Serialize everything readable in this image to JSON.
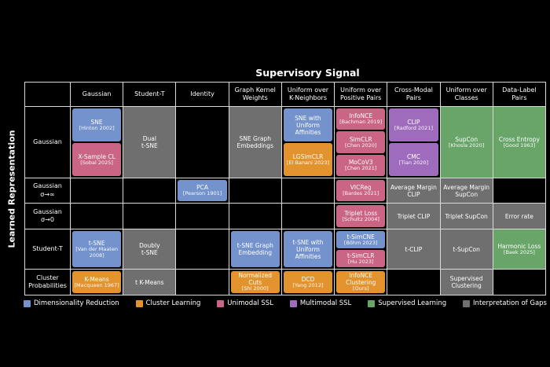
{
  "title": "Supervisory Signal",
  "y_axis_label": "Learned Representation",
  "colors": {
    "blue": "#7493cd",
    "orange": "#e2932e",
    "pink": "#cb6586",
    "purple": "#9f6cbd",
    "green": "#69a569",
    "gray": "#6f6f6f"
  },
  "columns": [
    "Gaussian",
    "Student-T",
    "Identity",
    "Graph Kernel\nWeights",
    "Uniform over\nK-Neighbors",
    "Uniform over\nPositive Pairs",
    "Cross-Modal\nPairs",
    "Uniform over\nClasses",
    "Data-Label\nPairs"
  ],
  "rows": [
    {
      "label": "Gaussian",
      "cells": [
        {
          "items": [
            {
              "name": "SNE",
              "cite": "[Hinton 2002]",
              "color": "blue"
            },
            {
              "name": "X-Sample CL",
              "cite": "[Sobal 2025]",
              "color": "pink"
            }
          ]
        },
        {
          "fill": true,
          "items": [
            {
              "name": "Dual\nt-SNE",
              "cite": "",
              "color": "gray"
            }
          ]
        },
        {
          "items": []
        },
        {
          "fill": true,
          "items": [
            {
              "name": "SNE Graph Embeddings",
              "cite": "",
              "color": "gray"
            }
          ]
        },
        {
          "items": [
            {
              "name": "SNE with Uniform Affinities",
              "cite": "",
              "color": "blue"
            },
            {
              "name": "LGSimCLR",
              "cite": "[El Banani 2023]",
              "color": "orange"
            }
          ]
        },
        {
          "items": [
            {
              "name": "InfoNCE",
              "cite": "[Bachman 2019]",
              "color": "pink"
            },
            {
              "name": "SimCLR",
              "cite": "[Chen 2020]",
              "color": "pink"
            },
            {
              "name": "MoCoV3",
              "cite": "[Chen 2021]",
              "color": "pink"
            }
          ]
        },
        {
          "items": [
            {
              "name": "CLIP",
              "cite": "[Radford 2021]",
              "color": "purple"
            },
            {
              "name": "CMC",
              "cite": "[Tian 2020]",
              "color": "purple"
            }
          ]
        },
        {
          "fill": true,
          "items": [
            {
              "name": "SupCon",
              "cite": "[Khosla 2020]",
              "color": "green"
            }
          ]
        },
        {
          "fill": true,
          "items": [
            {
              "name": "Cross Entropy",
              "cite": "[Good 1963]",
              "color": "green"
            }
          ]
        }
      ]
    },
    {
      "label": "Gaussian\nσ→∞",
      "cells": [
        {
          "items": []
        },
        {
          "items": []
        },
        {
          "items": [
            {
              "name": "PCA",
              "cite": "[Pearson 1901]",
              "color": "blue"
            }
          ]
        },
        {
          "items": []
        },
        {
          "items": []
        },
        {
          "items": [
            {
              "name": "VICReg",
              "cite": "[Bardes 2021]",
              "color": "pink"
            }
          ]
        },
        {
          "fill": true,
          "items": [
            {
              "name": "Average Margin CLIP",
              "cite": "",
              "color": "gray"
            }
          ]
        },
        {
          "fill": true,
          "items": [
            {
              "name": "Average Margin SupCon",
              "cite": "",
              "color": "gray"
            }
          ]
        },
        {
          "items": []
        }
      ]
    },
    {
      "label": "Gaussian\nσ→0",
      "cells": [
        {
          "items": []
        },
        {
          "items": []
        },
        {
          "items": []
        },
        {
          "items": []
        },
        {
          "items": []
        },
        {
          "items": [
            {
              "name": "Triplet Loss",
              "cite": "[Schultz 2004]",
              "color": "pink"
            }
          ]
        },
        {
          "fill": true,
          "items": [
            {
              "name": "Triplet CLIP",
              "cite": "",
              "color": "gray"
            }
          ]
        },
        {
          "fill": true,
          "items": [
            {
              "name": "Triplet SupCon",
              "cite": "",
              "color": "gray"
            }
          ]
        },
        {
          "fill": true,
          "items": [
            {
              "name": "Error rate",
              "cite": "",
              "color": "gray"
            }
          ]
        }
      ]
    },
    {
      "label": "Student-T",
      "cells": [
        {
          "items": [
            {
              "name": "t-SNE",
              "cite": "[Van der Maaten 2008]",
              "color": "blue"
            }
          ]
        },
        {
          "fill": true,
          "items": [
            {
              "name": "Doubly\nt-SNE",
              "cite": "",
              "color": "gray"
            }
          ]
        },
        {
          "items": []
        },
        {
          "items": [
            {
              "name": "t-SNE Graph Embedding",
              "cite": "",
              "color": "blue"
            }
          ]
        },
        {
          "items": [
            {
              "name": "t-SNE with Uniform Affinities",
              "cite": "",
              "color": "blue"
            }
          ]
        },
        {
          "items": [
            {
              "name": "t-SimCNE",
              "cite": "[Böhm 2023]",
              "color": "blue"
            },
            {
              "name": "t-SimCLR",
              "cite": "[Hu 2023]",
              "color": "pink"
            }
          ]
        },
        {
          "fill": true,
          "items": [
            {
              "name": "t-CLIP",
              "cite": "",
              "color": "gray"
            }
          ]
        },
        {
          "fill": true,
          "items": [
            {
              "name": "t-SupCon",
              "cite": "",
              "color": "gray"
            }
          ]
        },
        {
          "fill": true,
          "items": [
            {
              "name": "Harmonic Loss",
              "cite": "[Baek 2025]",
              "color": "green"
            }
          ]
        }
      ]
    },
    {
      "label": "Cluster\nProbabilities",
      "cells": [
        {
          "items": [
            {
              "name": "K-Means",
              "cite": "[Macqueen 1967]",
              "color": "orange"
            }
          ]
        },
        {
          "fill": true,
          "items": [
            {
              "name": "t K-Means",
              "cite": "",
              "color": "gray"
            }
          ]
        },
        {
          "items": []
        },
        {
          "items": [
            {
              "name": "Normalized Cuts",
              "cite": "[Shi 2000]",
              "color": "orange"
            }
          ]
        },
        {
          "items": [
            {
              "name": "DCD",
              "cite": "[Yang 2012]",
              "color": "orange"
            }
          ]
        },
        {
          "items": [
            {
              "name": "InfoNCE Clustering",
              "cite": "[Ours]",
              "color": "orange"
            }
          ]
        },
        {
          "items": []
        },
        {
          "fill": true,
          "items": [
            {
              "name": "Supervised Clustering",
              "cite": "",
              "color": "gray"
            }
          ]
        },
        {
          "items": []
        }
      ]
    }
  ],
  "legend": [
    {
      "label": "Dimensionality Reduction",
      "color": "blue"
    },
    {
      "label": "Cluster Learning",
      "color": "orange"
    },
    {
      "label": "Unimodal SSL",
      "color": "pink"
    },
    {
      "label": "Multimodal SSL",
      "color": "purple"
    },
    {
      "label": "Supervised Learning",
      "color": "green"
    },
    {
      "label": "Interpretation of Gaps",
      "color": "gray"
    }
  ]
}
